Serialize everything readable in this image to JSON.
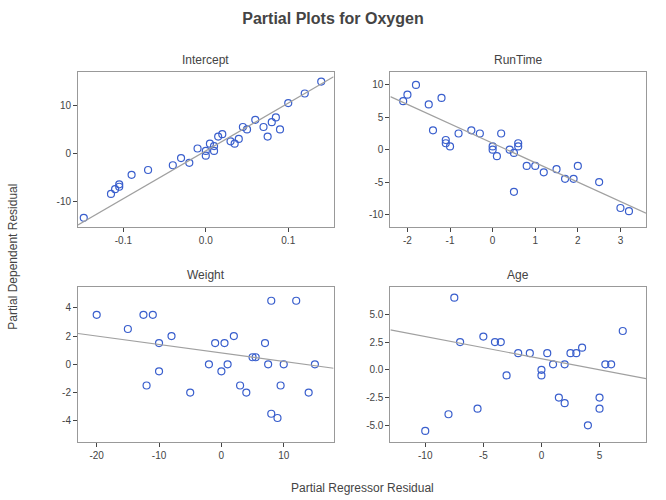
{
  "chart_data": {
    "type": "scatter",
    "title": "Partial Plots for Oxygen",
    "xlabel": "Partial Regressor Residual",
    "ylabel": "Partial Dependent Residual",
    "grid": false,
    "subplots": [
      {
        "title": "Intercept",
        "xlim": [
          -0.155,
          0.155
        ],
        "ylim": [
          -15.5,
          17
        ],
        "xticks": [
          -0.1,
          {
            "value": 0.0,
            "label": "0.0"
          },
          0.1
        ],
        "yticks": [
          -10,
          0,
          10
        ],
        "series": [
          {
            "type": "scatter",
            "marker": "open circle",
            "color": "#3a5fcd",
            "x": [
              -0.148,
              -0.115,
              -0.11,
              -0.105,
              -0.105,
              -0.09,
              -0.07,
              -0.04,
              -0.03,
              -0.02,
              -0.01,
              0.0,
              0.0,
              0.005,
              0.01,
              0.01,
              0.015,
              0.02,
              0.03,
              0.035,
              0.04,
              0.045,
              0.05,
              0.06,
              0.07,
              0.075,
              0.08,
              0.085,
              0.09,
              0.1,
              0.12,
              0.14
            ],
            "values": [
              -13.5,
              -8.5,
              -7.5,
              -7.0,
              -6.5,
              -4.5,
              -3.5,
              -2.5,
              -1.0,
              -2.0,
              1.0,
              0.5,
              -0.5,
              2.0,
              1.5,
              0.5,
              3.5,
              4.0,
              2.5,
              2.0,
              3.0,
              5.5,
              5.0,
              7.0,
              5.5,
              3.5,
              6.5,
              7.5,
              5.0,
              10.5,
              12.5,
              15.0
            ]
          },
          {
            "type": "line",
            "line_style": "solid",
            "color": "#a0a0a0",
            "x": [
              -0.155,
              0.155
            ],
            "values": [
              -15.0,
              16.0
            ]
          }
        ]
      },
      {
        "title": "RunTime",
        "xlim": [
          -2.4,
          3.6
        ],
        "ylim": [
          -12,
          12
        ],
        "xticks": [
          -2,
          -1,
          0,
          1,
          2,
          3
        ],
        "yticks": [
          -10,
          -5,
          0,
          5,
          10
        ],
        "series": [
          {
            "type": "scatter",
            "marker": "open circle",
            "color": "#3a5fcd",
            "x": [
              -2.1,
              -2.0,
              -1.8,
              -1.5,
              -1.4,
              -1.2,
              -1.1,
              -1.1,
              -1.0,
              -0.8,
              -0.5,
              -0.3,
              0.0,
              0.0,
              0.1,
              0.2,
              0.4,
              0.5,
              0.5,
              0.6,
              0.6,
              0.8,
              1.0,
              1.2,
              1.5,
              1.7,
              1.9,
              2.0,
              2.5,
              3.0,
              3.2
            ],
            "values": [
              7.5,
              8.5,
              10.0,
              7.0,
              3.0,
              8.0,
              1.5,
              1.0,
              0.5,
              2.5,
              3.0,
              2.5,
              0.0,
              0.5,
              -1.0,
              2.5,
              0.0,
              -6.5,
              -0.5,
              1.0,
              0.5,
              -2.5,
              -2.5,
              -3.5,
              -3.0,
              -4.5,
              -4.5,
              -2.5,
              -5.0,
              -9.0,
              -9.5
            ]
          },
          {
            "type": "line",
            "line_style": "solid",
            "color": "#a0a0a0",
            "x": [
              -2.4,
              3.6
            ],
            "values": [
              8.2,
              -9.8
            ]
          }
        ]
      },
      {
        "title": "Weight",
        "xlim": [
          -23,
          18
        ],
        "ylim": [
          -5.5,
          5.5
        ],
        "xticks": [
          -20,
          -10,
          0,
          10
        ],
        "yticks": [
          -4,
          -2,
          0,
          2,
          4
        ],
        "series": [
          {
            "type": "scatter",
            "marker": "open circle",
            "color": "#3a5fcd",
            "x": [
              -20.0,
              -15.0,
              -12.5,
              -12.0,
              -11.0,
              -10.0,
              -10.0,
              -8.0,
              -5.0,
              -2.0,
              -1.0,
              0.0,
              0.5,
              1.0,
              2.0,
              3.0,
              4.0,
              5.0,
              5.5,
              7.0,
              7.5,
              8.0,
              8.0,
              9.0,
              9.5,
              10.0,
              12.0,
              14.0,
              15.0
            ],
            "values": [
              3.5,
              2.5,
              3.5,
              -1.5,
              3.5,
              -0.5,
              1.5,
              2.0,
              -2.0,
              0.0,
              1.5,
              -0.5,
              1.5,
              0.0,
              2.0,
              -1.5,
              -2.0,
              0.5,
              0.5,
              1.5,
              0.0,
              4.5,
              -3.5,
              -3.8,
              -1.5,
              0.0,
              4.5,
              -2.0,
              0.0
            ]
          },
          {
            "type": "line",
            "line_style": "solid",
            "color": "#a0a0a0",
            "x": [
              -23,
              18
            ],
            "values": [
              2.18,
              -0.28
            ]
          }
        ]
      },
      {
        "title": "Age",
        "xlim": [
          -13,
          9
        ],
        "ylim": [
          -6.5,
          7.5
        ],
        "xticks": [
          -10,
          -5,
          0,
          5
        ],
        "yticks": [
          {
            "value": -5.0,
            "label": "-5.0"
          },
          {
            "value": -2.5,
            "label": "-2.5"
          },
          {
            "value": 0.0,
            "label": "0.0"
          },
          {
            "value": 2.5,
            "label": "2.5"
          },
          {
            "value": 5.0,
            "label": "5.0"
          }
        ],
        "series": [
          {
            "type": "scatter",
            "marker": "open circle",
            "color": "#3a5fcd",
            "x": [
              -10.0,
              -8.0,
              -7.5,
              -7.0,
              -5.5,
              -5.0,
              -4.0,
              -3.5,
              -3.0,
              -2.0,
              -1.0,
              0.0,
              0.0,
              0.5,
              1.0,
              1.5,
              2.0,
              2.0,
              2.5,
              3.0,
              3.5,
              4.0,
              5.0,
              5.0,
              5.5,
              6.0,
              7.0
            ],
            "values": [
              -5.5,
              -4.0,
              6.5,
              2.5,
              -3.5,
              3.0,
              2.5,
              2.5,
              -0.5,
              1.5,
              1.5,
              0.0,
              -0.5,
              1.5,
              0.5,
              -2.5,
              -3.0,
              0.5,
              1.5,
              1.5,
              2.0,
              -5.0,
              -3.5,
              -2.5,
              0.5,
              0.5,
              3.5
            ]
          },
          {
            "type": "line",
            "line_style": "solid",
            "color": "#a0a0a0",
            "x": [
              -13,
              9
            ],
            "values": [
              3.6,
              -0.8
            ]
          }
        ]
      }
    ]
  }
}
